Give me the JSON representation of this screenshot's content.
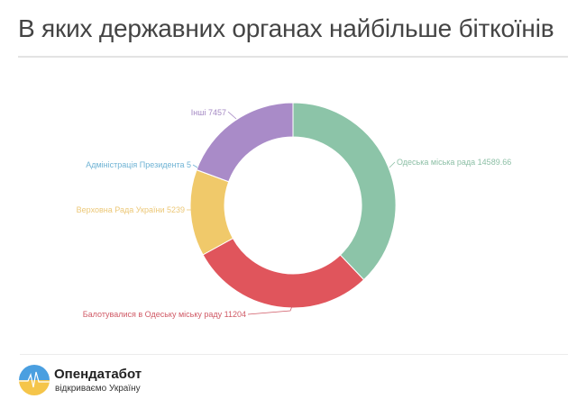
{
  "header": {
    "title": "В яких державних органах найбільше біткоїнів"
  },
  "chart_data": {
    "type": "pie",
    "subtype": "donut",
    "title": "В яких державних органах найбільше біткоїнів",
    "categories": [
      "Одеська міська рада",
      "Балотувалися в Одеську міську раду",
      "Верховна Рада України",
      "Адміністрація Президента",
      "Інші"
    ],
    "values": [
      14589.66,
      11204,
      5239,
      5,
      7457
    ],
    "colors": [
      "#8cc4a8",
      "#e0555c",
      "#f0c96a",
      "#7ab8d8",
      "#a98bc8"
    ],
    "labels": [
      "Одеська міська рада 14589.66",
      "Балотувалися в Одеську міську раду 11204",
      "Верховна Рада України 5239",
      "Адміністрація Президента 5",
      "Інші 7457"
    ],
    "label_colors": [
      "#8cbfa5",
      "#d05a66",
      "#ecc878",
      "#6fb3d4",
      "#a58ac4"
    ],
    "start_angle_deg": 0,
    "direction": "clockwise",
    "legend": "none (inline labels)"
  },
  "footer": {
    "brand_name": "Опендатабот",
    "tagline": "відкриваємо Україну",
    "logo_colors": {
      "top": "#4a9fe0",
      "bottom": "#f5c54a"
    }
  }
}
